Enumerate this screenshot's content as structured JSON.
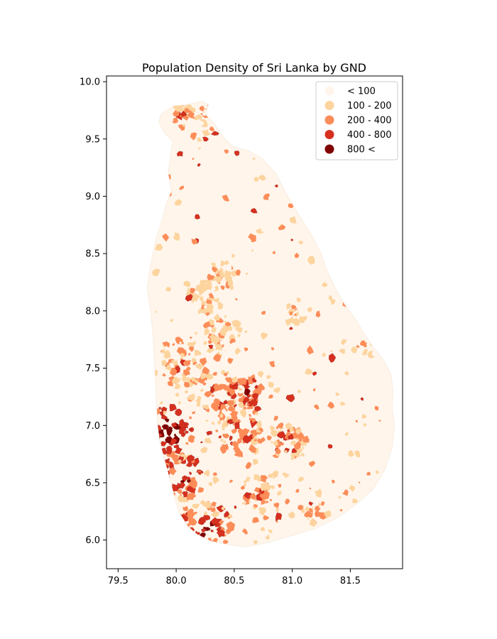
{
  "chart_data": {
    "type": "choropleth",
    "title": "Population Density of Sri Lanka by GND",
    "xlabel": "",
    "ylabel": "",
    "xlim": [
      79.4,
      81.95
    ],
    "ylim": [
      5.75,
      10.05
    ],
    "x_ticks": [
      79.5,
      80.0,
      80.5,
      81.0,
      81.5
    ],
    "x_tick_labels": [
      "79.5",
      "80.0",
      "80.5",
      "81.0",
      "81.5"
    ],
    "y_ticks": [
      6.0,
      6.5,
      7.0,
      7.5,
      8.0,
      8.5,
      9.0,
      9.5,
      10.0
    ],
    "y_tick_labels": [
      "6.0",
      "6.5",
      "7.0",
      "7.5",
      "8.0",
      "8.5",
      "9.0",
      "9.5",
      "10.0"
    ],
    "grid": false,
    "legend_position": "top-right",
    "classes": [
      {
        "label": "< 100",
        "color": "#fff5eb"
      },
      {
        "label": "100 - 200",
        "color": "#fdd49e"
      },
      {
        "label": "200 - 400",
        "color": "#fc8d59"
      },
      {
        "label": "400 - 800",
        "color": "#d7301f"
      },
      {
        "label": "800 <",
        "color": "#7f0000"
      }
    ]
  }
}
